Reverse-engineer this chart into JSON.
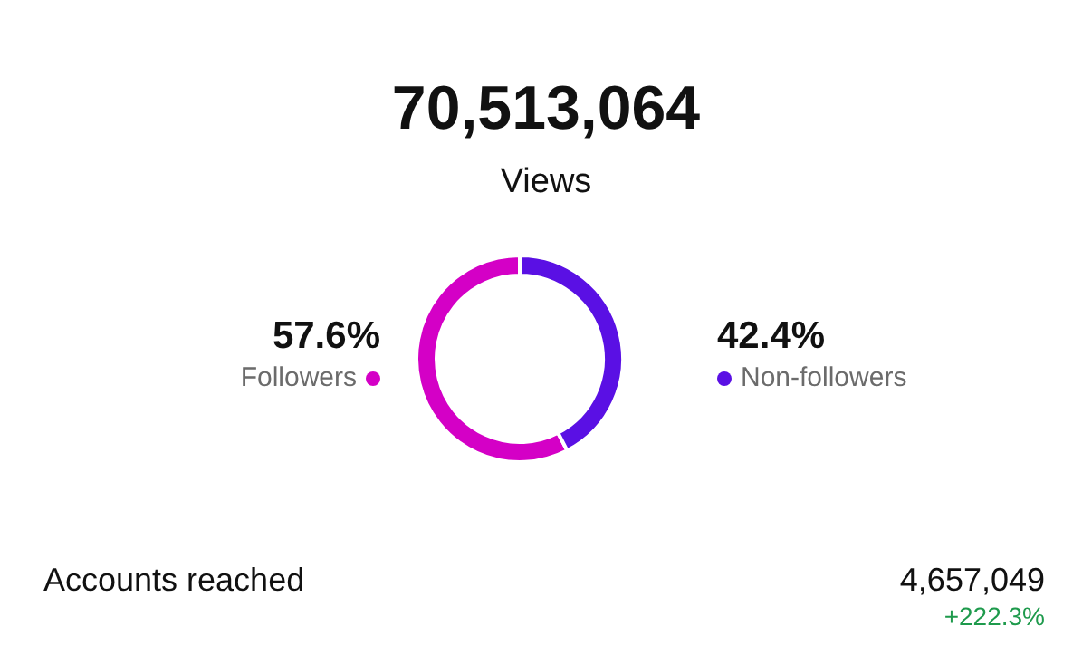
{
  "chart_data": {
    "type": "donut",
    "title": "70,513,064",
    "subtitle": "Views",
    "categories": [
      "Followers",
      "Non-followers"
    ],
    "values": [
      57.6,
      42.4
    ],
    "colors": [
      "#d400c6",
      "#5a10e4"
    ],
    "value_labels": [
      "57.6%",
      "42.4%"
    ],
    "annotations": [
      "Accounts reached",
      "4,657,049",
      "+222.3%"
    ]
  }
}
